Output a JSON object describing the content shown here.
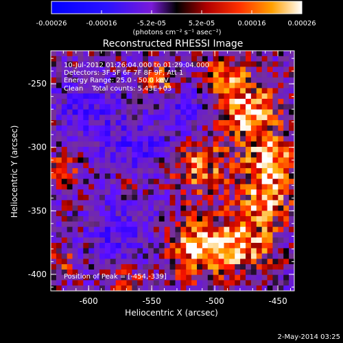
{
  "title": "Reconstructed RHESSI Image",
  "colorbar": {
    "tick_labels": [
      "-0.00026",
      "-0.00016",
      "-5.2e-05",
      "5.2e-05",
      "0.00016",
      "0.00026"
    ],
    "unit_label": "(photons cm⁻² s⁻¹ asec⁻²)",
    "range": [
      -0.00026,
      0.00026
    ]
  },
  "axes": {
    "xlabel": "Heliocentric X (arcsec)",
    "ylabel": "Heliocentric Y (arcsec)",
    "x_ticks": [
      "-600",
      "-550",
      "-500",
      "-450"
    ],
    "y_ticks": [
      "-250",
      "-300",
      "-350",
      "-400"
    ],
    "x_range": [
      -630,
      -437
    ],
    "y_range": [
      -413,
      -224
    ]
  },
  "annotations": {
    "time_range": "10-Jul-2012 01:26:04.000 to 01:29:04.000",
    "detectors": "Detectors: 3F 5F 6F 7F 8F 9F, Att 1",
    "energy_range": "Energy Range: 25.0 - 50.0 keV",
    "clean_counts": "Clean    Total counts: 5.43E+03",
    "peak_position": "Position of Peak = [-454,-339]"
  },
  "footer_date": "2-May-2014 03:25",
  "colors": {
    "background": "#000000",
    "text": "#ffffff"
  }
}
